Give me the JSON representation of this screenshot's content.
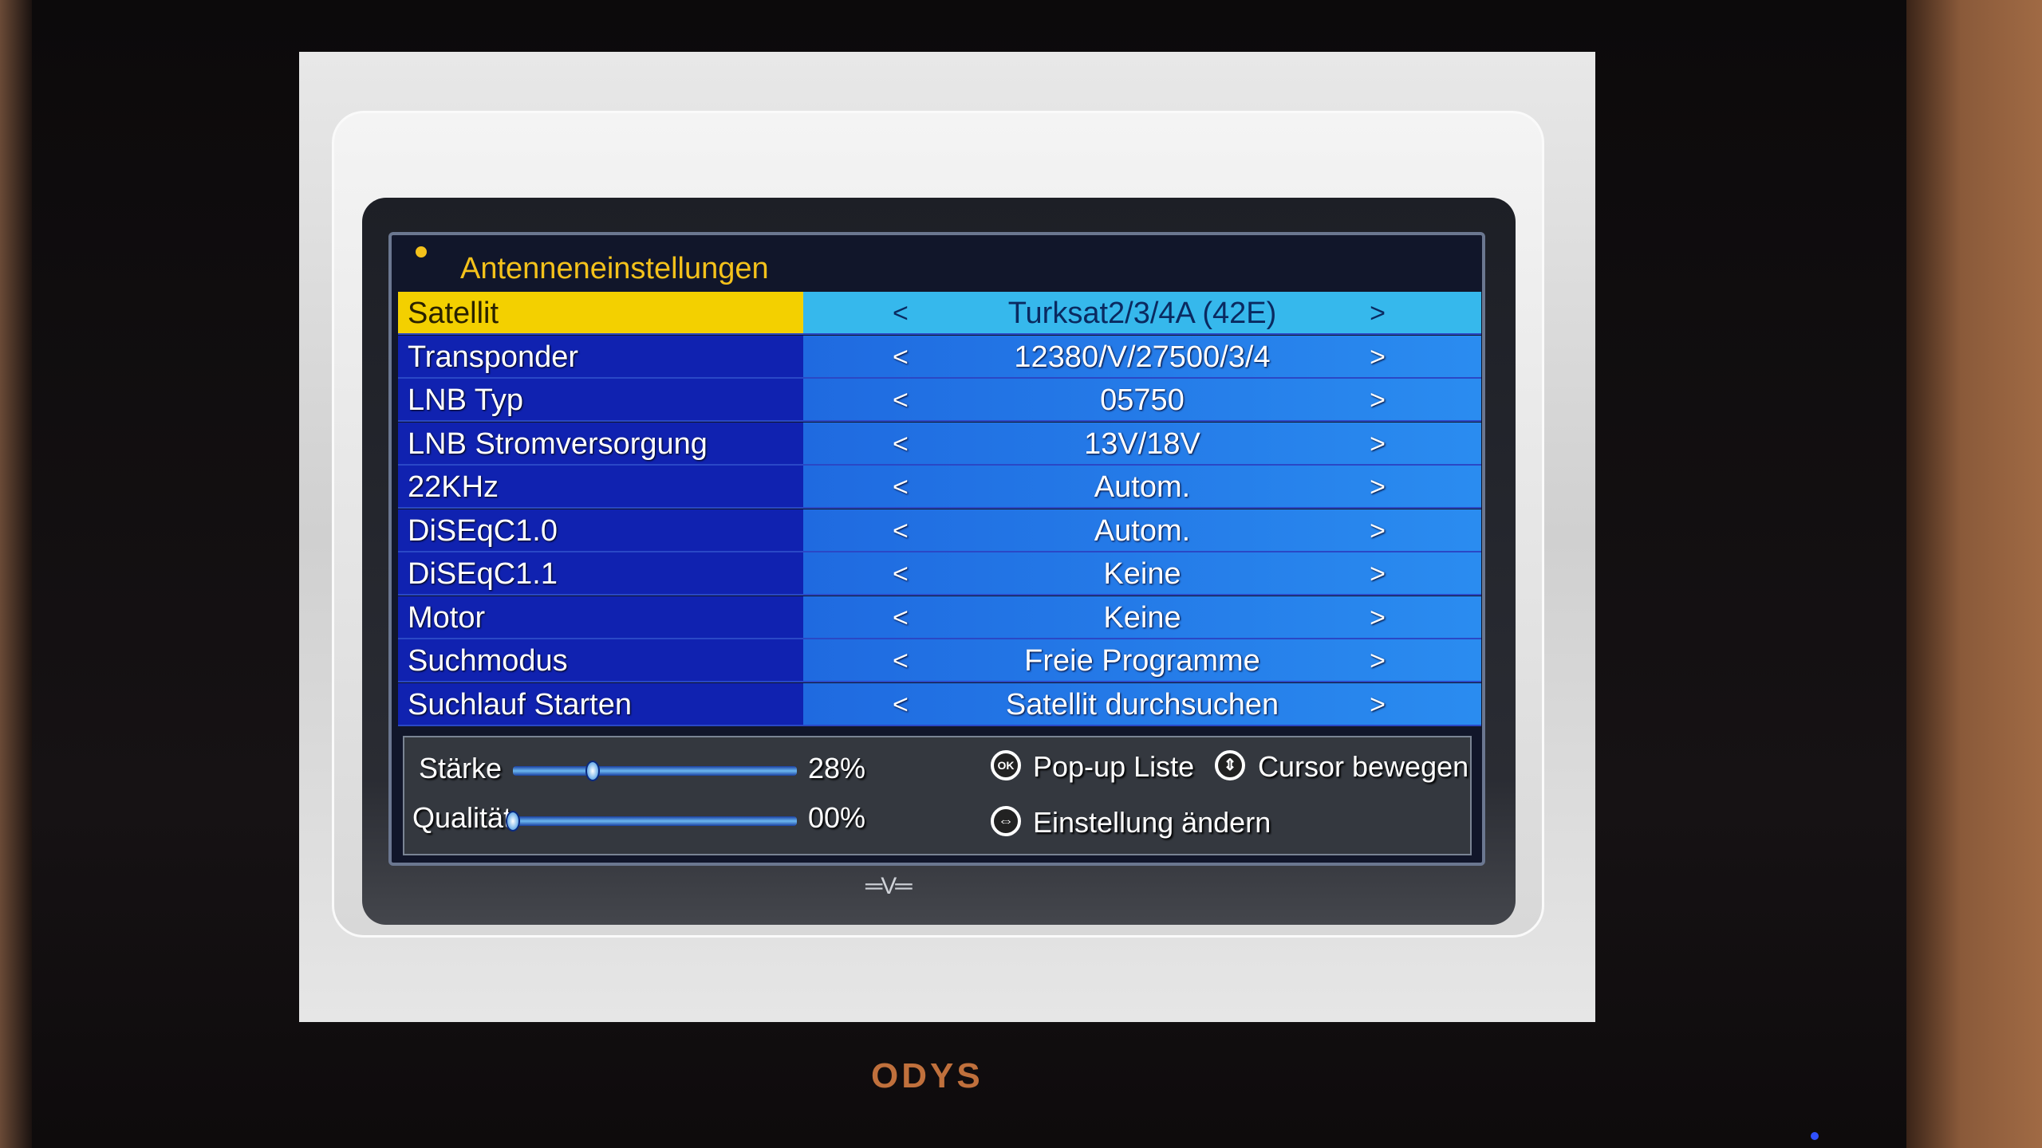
{
  "menu": {
    "title": "Antenneneinstellungen",
    "rows": [
      {
        "label": "Satellit",
        "value": "Turksat2/3/4A (42E)",
        "selected": true
      },
      {
        "label": "Transponder",
        "value": "12380/V/27500/3/4"
      },
      {
        "label": "LNB Typ",
        "value": "05750"
      },
      {
        "label": "LNB Stromversorgung",
        "value": "13V/18V"
      },
      {
        "label": "22KHz",
        "value": "Autom."
      },
      {
        "label": "DiSEqC1.0",
        "value": "Autom."
      },
      {
        "label": "DiSEqC1.1",
        "value": "Keine"
      },
      {
        "label": "Motor",
        "value": "Keine"
      },
      {
        "label": "Suchmodus",
        "value": "Freie Programme"
      },
      {
        "label": "Suchlauf Starten",
        "value": "Satellit durchsuchen"
      }
    ],
    "prev_glyph": "<",
    "next_glyph": ">"
  },
  "signal": {
    "strength_label": "Stärke",
    "strength_text": "28%",
    "strength_percent": 28,
    "quality_label": "Qualität",
    "quality_text": "00%",
    "quality_percent": 0
  },
  "help": {
    "ok_icon_text": "OK",
    "ok_label": "Pop-up Liste",
    "updown_label": "Cursor bewegen",
    "leftright_label": "Einstellung ändern"
  },
  "tv": {
    "brand": "ODYS"
  },
  "colors": {
    "title": "#f4c21b",
    "selected_label": "#f3d000",
    "selected_value": "#36b8ec",
    "label_bg": "#1022b0",
    "value_bg": "#2a8cf0"
  }
}
